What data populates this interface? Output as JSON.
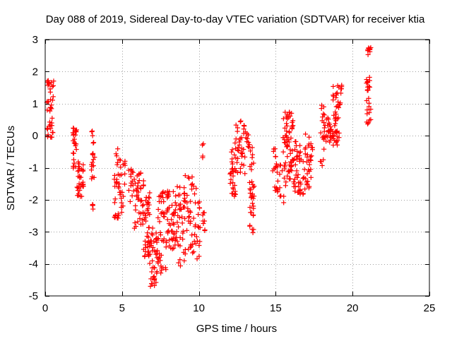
{
  "chart_data": {
    "type": "scatter",
    "title": "Day 088 of 2019, Sidereal Day-to-day VTEC variation (SDTVAR) for receiver ktia",
    "xlabel": "GPS time / hours",
    "ylabel": "SDTVAR / TECUs",
    "xlim": [
      0,
      25
    ],
    "ylim": [
      -5,
      3
    ],
    "xticks": [
      0,
      5,
      10,
      15,
      20,
      25
    ],
    "yticks": [
      3,
      2,
      1,
      0,
      -1,
      -2,
      -3,
      -4,
      -5
    ],
    "grid": true,
    "marker": "+",
    "color": "#ff0000",
    "clusters": [
      {
        "x0": 0.1,
        "x1": 0.55,
        "y0": -0.1,
        "y1": 1.75,
        "n": 40
      },
      {
        "x0": 1.8,
        "x1": 2.05,
        "y0": -1.1,
        "y1": 0.25,
        "n": 25
      },
      {
        "x0": 2.05,
        "x1": 2.5,
        "y0": -1.9,
        "y1": -0.8,
        "n": 35
      },
      {
        "x0": 3.0,
        "x1": 3.25,
        "y0": -1.4,
        "y1": 0.3,
        "n": 18
      },
      {
        "x0": 3.05,
        "x1": 3.2,
        "y0": -2.3,
        "y1": -2.0,
        "n": 5
      },
      {
        "x0": 4.5,
        "x1": 4.8,
        "y0": -2.65,
        "y1": -0.35,
        "n": 25
      },
      {
        "x0": 4.8,
        "x1": 5.2,
        "y0": -2.5,
        "y1": -0.7,
        "n": 22
      },
      {
        "x0": 5.4,
        "x1": 5.8,
        "y0": -2.1,
        "y1": -0.9,
        "n": 15
      },
      {
        "x0": 5.8,
        "x1": 6.4,
        "y0": -2.9,
        "y1": -1.1,
        "n": 40
      },
      {
        "x0": 6.4,
        "x1": 6.8,
        "y0": -3.8,
        "y1": -1.6,
        "n": 40
      },
      {
        "x0": 6.8,
        "x1": 7.3,
        "y0": -4.7,
        "y1": -2.8,
        "n": 40
      },
      {
        "x0": 7.3,
        "x1": 7.9,
        "y0": -4.3,
        "y1": -1.7,
        "n": 45
      },
      {
        "x0": 7.9,
        "x1": 8.5,
        "y0": -3.6,
        "y1": -1.7,
        "n": 45
      },
      {
        "x0": 8.5,
        "x1": 9.1,
        "y0": -4.1,
        "y1": -1.5,
        "n": 40
      },
      {
        "x0": 9.1,
        "x1": 9.6,
        "y0": -3.8,
        "y1": -1.1,
        "n": 30
      },
      {
        "x0": 9.6,
        "x1": 10.1,
        "y0": -3.9,
        "y1": -1.4,
        "n": 25
      },
      {
        "x0": 10.2,
        "x1": 10.4,
        "y0": -3.0,
        "y1": -2.4,
        "n": 8
      },
      {
        "x0": 10.2,
        "x1": 10.35,
        "y0": -0.8,
        "y1": 0.0,
        "n": 4
      },
      {
        "x0": 12.0,
        "x1": 12.4,
        "y0": -1.9,
        "y1": -0.2,
        "n": 30
      },
      {
        "x0": 12.4,
        "x1": 13.0,
        "y0": -1.2,
        "y1": 0.55,
        "n": 35
      },
      {
        "x0": 13.0,
        "x1": 13.3,
        "y0": -0.4,
        "y1": 0.2,
        "n": 10
      },
      {
        "x0": 13.3,
        "x1": 13.6,
        "y0": -3.1,
        "y1": -0.3,
        "n": 35
      },
      {
        "x0": 14.8,
        "x1": 15.2,
        "y0": -1.8,
        "y1": -0.4,
        "n": 20
      },
      {
        "x0": 15.2,
        "x1": 15.6,
        "y0": -2.1,
        "y1": 0.6,
        "n": 20
      },
      {
        "x0": 15.6,
        "x1": 16.2,
        "y0": -1.6,
        "y1": 0.75,
        "n": 60
      },
      {
        "x0": 16.2,
        "x1": 16.8,
        "y0": -1.9,
        "y1": -0.1,
        "n": 40
      },
      {
        "x0": 16.8,
        "x1": 17.4,
        "y0": -1.8,
        "y1": 0.05,
        "n": 35
      },
      {
        "x0": 17.9,
        "x1": 18.2,
        "y0": -0.95,
        "y1": 1.05,
        "n": 20
      },
      {
        "x0": 18.2,
        "x1": 18.7,
        "y0": -0.2,
        "y1": 0.6,
        "n": 25
      },
      {
        "x0": 18.7,
        "x1": 19.3,
        "y0": -0.3,
        "y1": 1.6,
        "n": 50
      },
      {
        "x0": 20.9,
        "x1": 21.2,
        "y0": 0.3,
        "y1": 1.85,
        "n": 25
      },
      {
        "x0": 20.95,
        "x1": 21.2,
        "y0": 2.5,
        "y1": 2.75,
        "n": 10
      }
    ]
  }
}
